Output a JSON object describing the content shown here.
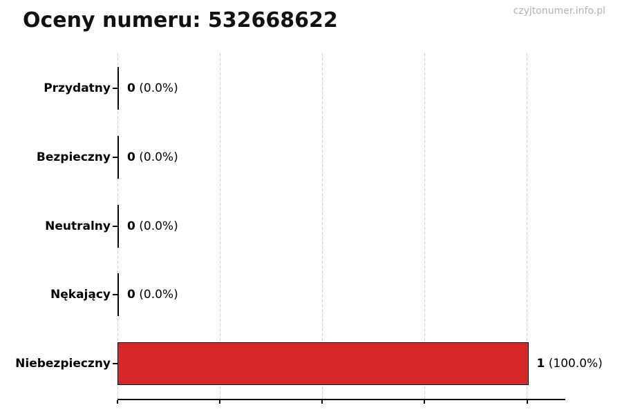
{
  "page": {
    "title": "Oceny numeru: 532668622",
    "watermark": "czyjtonumer.info.pl"
  },
  "chart_data": {
    "type": "bar",
    "orientation": "horizontal",
    "title": "Oceny numeru: 532668622",
    "categories": [
      "Przydatny",
      "Bezpieczny",
      "Neutralny",
      "Nękający",
      "Niebezpieczny"
    ],
    "values": [
      0,
      0,
      0,
      0,
      1
    ],
    "counts": [
      "0",
      "0",
      "0",
      "0",
      "1"
    ],
    "percents": [
      "(0.0%)",
      "(0.0%)",
      "(0.0%)",
      "(0.0%)",
      "(100.0%)"
    ],
    "xlabel": "",
    "ylabel": "",
    "xlim": [
      0,
      1.09
    ],
    "xticks": [
      0,
      0.25,
      0.5,
      0.75,
      1
    ],
    "grid": "vertical-dashed",
    "legend": "none",
    "bar_color": "#d62728",
    "bar_edge_color": "#000000",
    "gridline_color": "#cfcfcf",
    "watermark_color": "#b3b3b3"
  }
}
